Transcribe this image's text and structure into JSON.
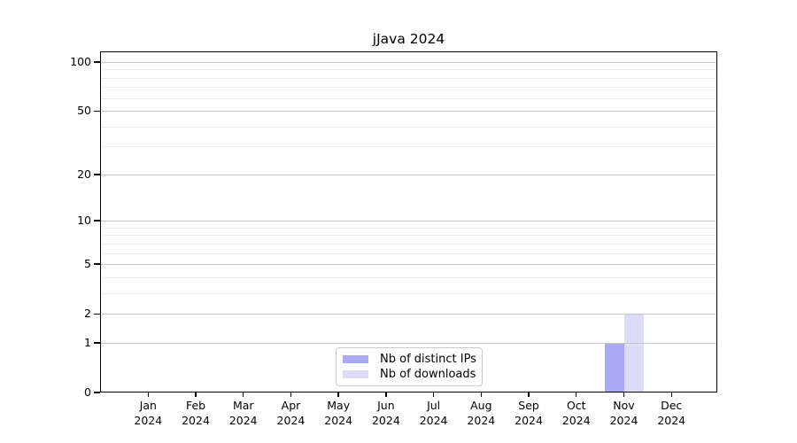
{
  "chart_data": {
    "type": "bar",
    "title": "jJava 2024",
    "xlabel": "",
    "ylabel": "",
    "year": "2024",
    "categories": [
      "Jan",
      "Feb",
      "Mar",
      "Apr",
      "May",
      "Jun",
      "Jul",
      "Aug",
      "Sep",
      "Oct",
      "Nov",
      "Dec"
    ],
    "series": [
      {
        "name": "Nb of distinct IPs",
        "color": "#aaaaf2",
        "values": [
          0,
          0,
          0,
          0,
          0,
          0,
          0,
          0,
          0,
          0,
          1,
          0
        ]
      },
      {
        "name": "Nb of downloads",
        "color": "#dcdcf8",
        "values": [
          0,
          0,
          0,
          0,
          0,
          0,
          0,
          0,
          0,
          0,
          2,
          0
        ]
      }
    ],
    "yscale": "log1p",
    "ylim": [
      0,
      116
    ],
    "y_major_ticks": [
      0,
      1,
      2,
      5,
      10,
      20,
      50,
      100
    ],
    "y_minor_gridlines": [
      3,
      4,
      6,
      7,
      8,
      9,
      30,
      40,
      60,
      70,
      80,
      90
    ],
    "grid": true,
    "legend_position": "lower center inside",
    "colors": {
      "background": "#ffffff",
      "axis": "#000000",
      "major_grid": "#c6c6c6",
      "minor_grid": "#ececec"
    }
  }
}
